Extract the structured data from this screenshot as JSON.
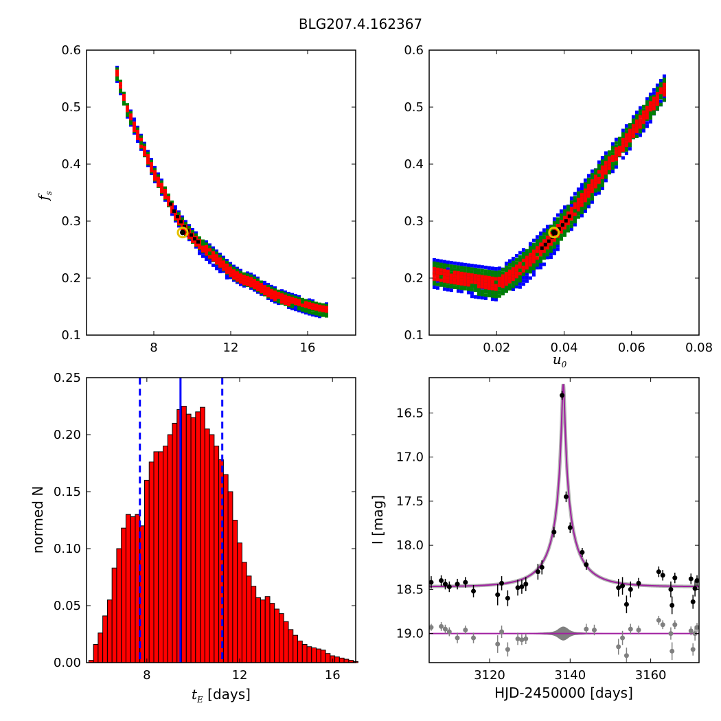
{
  "figure_title": "BLG207.4.162367",
  "chart_data": [
    {
      "type": "heatmap",
      "panel": "top-left",
      "xlabel": "",
      "ylabel_main": "f",
      "ylabel_sub": "s",
      "xlim": [
        4.5,
        18.5
      ],
      "ylim": [
        0.1,
        0.6
      ],
      "xticks": [
        "8",
        "12",
        "16"
      ],
      "yticks": [
        "0.1",
        "0.2",
        "0.3",
        "0.4",
        "0.5",
        "0.6"
      ],
      "colors": {
        "outer": "#0000ff",
        "middle": "#008000",
        "inner": "#ff0000",
        "core": "#000000",
        "best_fit": "#e5c100"
      },
      "band_center": [
        [
          6.0,
          0.56
        ],
        [
          6.5,
          0.5
        ],
        [
          7.0,
          0.46
        ],
        [
          7.5,
          0.42
        ],
        [
          8.0,
          0.38
        ],
        [
          8.5,
          0.35
        ],
        [
          9.0,
          0.315
        ],
        [
          9.5,
          0.29
        ],
        [
          10.0,
          0.27
        ],
        [
          10.5,
          0.255
        ],
        [
          11.0,
          0.24
        ],
        [
          11.5,
          0.225
        ],
        [
          12.0,
          0.21
        ],
        [
          12.5,
          0.2
        ],
        [
          13.0,
          0.195
        ],
        [
          13.5,
          0.185
        ],
        [
          14.0,
          0.175
        ],
        [
          14.5,
          0.168
        ],
        [
          15.0,
          0.162
        ],
        [
          15.5,
          0.157
        ],
        [
          16.0,
          0.152
        ],
        [
          16.5,
          0.148
        ],
        [
          17.0,
          0.145
        ]
      ],
      "best_fit": [
        9.5,
        0.28
      ]
    },
    {
      "type": "heatmap",
      "panel": "top-right",
      "xlabel_main": "u",
      "xlabel_sub": "0",
      "ylabel": "",
      "xlim": [
        0.0,
        0.08
      ],
      "ylim": [
        0.1,
        0.6
      ],
      "xticks": [
        "0.02",
        "0.04",
        "0.06",
        "0.08"
      ],
      "yticks": [
        "0.1",
        "0.2",
        "0.3",
        "0.4",
        "0.5",
        "0.6"
      ],
      "colors": {
        "outer": "#0000ff",
        "middle": "#008000",
        "inner": "#ff0000",
        "core": "#000000",
        "best_fit": "#e5c100"
      },
      "band_center": [
        [
          0.001,
          0.21
        ],
        [
          0.005,
          0.205
        ],
        [
          0.01,
          0.2
        ],
        [
          0.015,
          0.195
        ],
        [
          0.02,
          0.19
        ],
        [
          0.025,
          0.21
        ],
        [
          0.03,
          0.235
        ],
        [
          0.035,
          0.265
        ],
        [
          0.04,
          0.3
        ],
        [
          0.045,
          0.34
        ],
        [
          0.05,
          0.38
        ],
        [
          0.055,
          0.42
        ],
        [
          0.06,
          0.46
        ],
        [
          0.065,
          0.5
        ],
        [
          0.07,
          0.54
        ]
      ],
      "best_fit": [
        0.037,
        0.28
      ]
    },
    {
      "type": "bar",
      "panel": "bottom-left",
      "xlabel_main": "t",
      "xlabel_sub": "E",
      "xlabel_suffix": " [days]",
      "ylabel": "normed N",
      "xlim": [
        5.4,
        17.0
      ],
      "ylim": [
        0.0,
        0.25
      ],
      "xticks": [
        "8",
        "12",
        "16"
      ],
      "yticks": [
        "0.00",
        "0.05",
        "0.10",
        "0.15",
        "0.20",
        "0.25"
      ],
      "bin_start": 5.5,
      "bin_width": 0.2,
      "values": [
        0.002,
        0.016,
        0.026,
        0.041,
        0.055,
        0.083,
        0.1,
        0.118,
        0.13,
        0.128,
        0.13,
        0.12,
        0.16,
        0.176,
        0.185,
        0.185,
        0.19,
        0.2,
        0.21,
        0.222,
        0.225,
        0.218,
        0.215,
        0.22,
        0.224,
        0.205,
        0.2,
        0.19,
        0.178,
        0.165,
        0.15,
        0.125,
        0.105,
        0.088,
        0.076,
        0.067,
        0.057,
        0.055,
        0.058,
        0.052,
        0.047,
        0.043,
        0.036,
        0.029,
        0.024,
        0.019,
        0.016,
        0.014,
        0.013,
        0.012,
        0.011,
        0.008,
        0.006,
        0.005,
        0.004,
        0.003,
        0.002,
        0.001
      ],
      "median": 9.45,
      "lower": 7.7,
      "upper": 11.25,
      "colors": {
        "bar": "#ff0000",
        "median": "#0000ff",
        "bounds": "#0000ff"
      }
    },
    {
      "type": "scatter",
      "panel": "bottom-right",
      "xlabel": "HJD-2450000 [days]",
      "ylabel": "I [mag]",
      "xlim": [
        3105,
        3172
      ],
      "ylim": [
        19.33,
        16.1
      ],
      "xticks": [
        "3120",
        "3140",
        "3160"
      ],
      "yticks": [
        "16.5",
        "17.0",
        "17.5",
        "18.0",
        "18.5",
        "19.0"
      ],
      "model": {
        "t0": 3138.3,
        "u0": 0.037,
        "tE": 9.5,
        "fs": 0.28,
        "I_base": 18.47
      },
      "observed": [
        [
          3105.5,
          18.42,
          0.07
        ],
        [
          3108,
          18.4,
          0.06
        ],
        [
          3109,
          18.44,
          0.06
        ],
        [
          3110,
          18.47,
          0.06
        ],
        [
          3112,
          18.44,
          0.06
        ],
        [
          3114,
          18.42,
          0.06
        ],
        [
          3116,
          18.52,
          0.07
        ],
        [
          3122,
          18.56,
          0.12
        ],
        [
          3123,
          18.43,
          0.08
        ],
        [
          3124.5,
          18.6,
          0.09
        ],
        [
          3127,
          18.48,
          0.09
        ],
        [
          3128,
          18.47,
          0.08
        ],
        [
          3129,
          18.44,
          0.08
        ],
        [
          3132,
          18.3,
          0.09
        ],
        [
          3133,
          18.25,
          0.08
        ],
        [
          3136,
          17.85,
          0.06
        ],
        [
          3138,
          16.3,
          0.05
        ],
        [
          3139,
          17.45,
          0.06
        ],
        [
          3140,
          17.8,
          0.06
        ],
        [
          3143,
          18.08,
          0.05
        ],
        [
          3144,
          18.22,
          0.06
        ],
        [
          3152,
          18.48,
          0.1
        ],
        [
          3153,
          18.46,
          0.1
        ],
        [
          3154,
          18.67,
          0.1
        ],
        [
          3155,
          18.5,
          0.09
        ],
        [
          3157,
          18.43,
          0.06
        ],
        [
          3162,
          18.3,
          0.06
        ],
        [
          3163,
          18.34,
          0.06
        ],
        [
          3165,
          18.5,
          0.09
        ],
        [
          3165.3,
          18.68,
          0.1
        ],
        [
          3166,
          18.37,
          0.06
        ],
        [
          3170,
          18.38,
          0.06
        ],
        [
          3170.5,
          18.64,
          0.08
        ],
        [
          3171,
          18.49,
          0.09
        ],
        [
          3171.5,
          18.4,
          0.06
        ]
      ],
      "residual_level": 19.0,
      "residuals": [
        [
          3105.5,
          18.93,
          0.04
        ],
        [
          3108,
          18.92,
          0.05
        ],
        [
          3109,
          18.95,
          0.05
        ],
        [
          3110,
          18.98,
          0.05
        ],
        [
          3112,
          19.05,
          0.06
        ],
        [
          3114,
          18.96,
          0.05
        ],
        [
          3116,
          19.05,
          0.06
        ],
        [
          3122,
          19.12,
          0.1
        ],
        [
          3123,
          18.98,
          0.07
        ],
        [
          3124.5,
          19.18,
          0.08
        ],
        [
          3127,
          19.06,
          0.07
        ],
        [
          3128,
          19.07,
          0.06
        ],
        [
          3129,
          19.06,
          0.06
        ],
        [
          3144,
          18.95,
          0.06
        ],
        [
          3146,
          18.96,
          0.06
        ],
        [
          3152,
          19.15,
          0.09
        ],
        [
          3153,
          19.05,
          0.08
        ],
        [
          3154,
          19.25,
          0.09
        ],
        [
          3155,
          18.95,
          0.06
        ],
        [
          3157,
          18.96,
          0.05
        ],
        [
          3162,
          18.85,
          0.05
        ],
        [
          3163,
          18.9,
          0.05
        ],
        [
          3165,
          19.0,
          0.07
        ],
        [
          3165.3,
          19.2,
          0.1
        ],
        [
          3166,
          18.9,
          0.05
        ],
        [
          3170,
          18.97,
          0.05
        ],
        [
          3170.5,
          19.18,
          0.07
        ],
        [
          3171,
          19.0,
          0.08
        ],
        [
          3171.5,
          18.93,
          0.05
        ]
      ],
      "colors": {
        "model": "#a020a0",
        "observed": "#000000",
        "residual": "#808080",
        "envelope": "#808080"
      }
    }
  ]
}
